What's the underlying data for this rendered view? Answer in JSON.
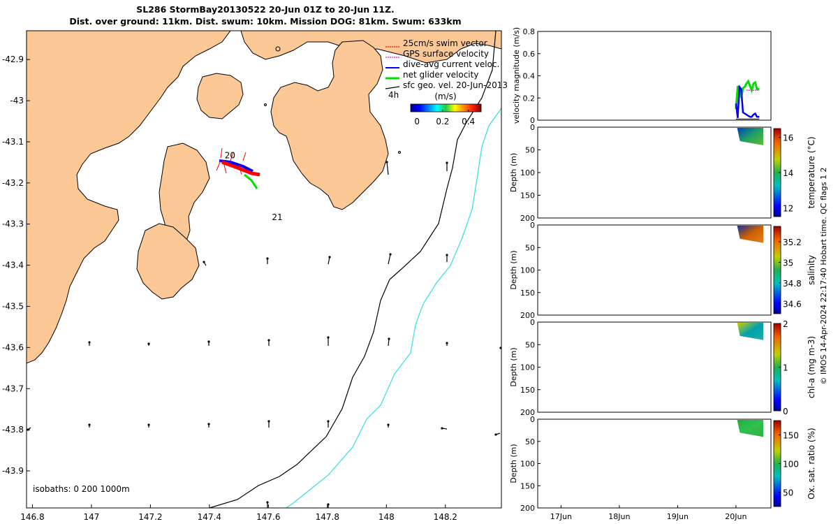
{
  "header": {
    "title_line1": "SL286 StormBay20130522 20-Jun 01Z to 20-Jun 11Z.",
    "title_line2": "Dist. over ground: 11km. Dist. swum: 10km. Mission DOG: 81km. Swum: 633km"
  },
  "chart_data": [
    {
      "type": "map",
      "xlim": [
        146.78,
        148.39
      ],
      "ylim": [
        -43.99,
        -42.83
      ],
      "x_ticks": [
        "146.8",
        "147",
        "147.2",
        "147.4",
        "147.6",
        "147.8",
        "148",
        "148.2"
      ],
      "y_ticks": [
        "-42.9",
        "-43",
        "-43.1",
        "-43.2",
        "-43.3",
        "-43.4",
        "-43.5",
        "-43.6",
        "-43.7",
        "-43.8",
        "-43.9"
      ],
      "legend": [
        {
          "label": "25cm/s swim vector",
          "color": "#ff0000"
        },
        {
          "label": "GPS surface velocity",
          "color": "#ff00ff"
        },
        {
          "label": "dive-avg current veloc.",
          "color": "#0000ff"
        },
        {
          "label": "net glider velocity",
          "color": "#00dd00"
        },
        {
          "label": "sfc geo. vel. 20-Jun-2013",
          "color": "#000000"
        }
      ],
      "legend_note": "4h",
      "colorbar": {
        "title": "(m/s)",
        "ticks": [
          "0",
          "0.2",
          "0.4"
        ],
        "range": [
          -0.05,
          0.5
        ]
      },
      "annotations": [
        {
          "text": "20",
          "lon": 147.47,
          "lat": -43.14
        },
        {
          "text": "21",
          "lon": 147.63,
          "lat": -43.29
        }
      ],
      "isobaths_label": "isobaths: 0   200  1000m"
    },
    {
      "type": "line",
      "ylabel": "velocity magnitude (m/s)",
      "ylim": [
        0,
        0.8
      ],
      "y_ticks": [
        "0",
        "0.2",
        "0.4",
        "0.6",
        "0.8"
      ],
      "series": [
        {
          "color": "#00dd00",
          "x": [
            20.0,
            20.03,
            20.06,
            20.09,
            20.12,
            20.15,
            20.18,
            20.21,
            20.24,
            20.27,
            20.3,
            20.33,
            20.36,
            20.4
          ],
          "y": [
            0.1,
            0.3,
            0.3,
            0.2,
            0.29,
            0.3,
            0.33,
            0.35,
            0.31,
            0.27,
            0.33,
            0.34,
            0.28,
            0.28
          ]
        },
        {
          "color": "#0000ff",
          "x": [
            20.0,
            20.03,
            20.06,
            20.09,
            20.12,
            20.15,
            20.18,
            20.21,
            20.24,
            20.27,
            20.3,
            20.33,
            20.36,
            20.4
          ],
          "y": [
            0.15,
            0.02,
            0.3,
            0.28,
            0.07,
            0.06,
            0.05,
            0.04,
            0.03,
            0.03,
            0.05,
            0.06,
            0.03,
            0.03
          ]
        },
        {
          "color": "#ff00ff",
          "x": [
            20.18,
            20.21,
            20.24,
            20.27,
            20.3,
            20.33,
            20.36,
            20.4
          ],
          "y": [
            0.27,
            0.27,
            0.27,
            0.27,
            0.27,
            0.27,
            0.27,
            0.27
          ]
        },
        {
          "color": "#000000",
          "x": [
            20.0,
            20.1,
            20.2,
            20.3,
            20.4
          ],
          "y": [
            0.01,
            0.01,
            0.01,
            0.01,
            0.01
          ]
        }
      ]
    },
    {
      "type": "heatmap",
      "variable": "temperature (°C)",
      "ylabel": "Depth (m)",
      "ylim": [
        200,
        0
      ],
      "y_ticks": [
        "0",
        "50",
        "100",
        "150",
        "200"
      ],
      "colorbar_ticks": [
        "12",
        "14",
        "16"
      ],
      "clim": [
        11.5,
        16.5
      ],
      "data_x_range": [
        "20Jun 00Z",
        "20Jun 11Z"
      ],
      "data_max_depth": 40
    },
    {
      "type": "heatmap",
      "variable": "salinity",
      "ylabel": "Depth (m)",
      "ylim": [
        200,
        0
      ],
      "y_ticks": [
        "0",
        "50",
        "100",
        "150",
        "200"
      ],
      "colorbar_ticks": [
        "34.6",
        "34.8",
        "35",
        "35.2"
      ],
      "clim": [
        34.5,
        35.35
      ],
      "data_x_range": [
        "20Jun 00Z",
        "20Jun 11Z"
      ],
      "data_max_depth": 40
    },
    {
      "type": "heatmap",
      "variable": "chl-a (mg m-3)",
      "ylabel": "Depth (m)",
      "ylim": [
        200,
        0
      ],
      "y_ticks": [
        "0",
        "50",
        "100",
        "150",
        "200"
      ],
      "colorbar_ticks": [
        "0",
        "1",
        "2"
      ],
      "clim": [
        0,
        2
      ],
      "data_x_range": [
        "20Jun 00Z",
        "20Jun 11Z"
      ],
      "data_max_depth": 40
    },
    {
      "type": "heatmap",
      "variable": "Ox. sat. ratio (%)",
      "ylabel": "Depth (m)",
      "ylim": [
        200,
        0
      ],
      "y_ticks": [
        "0",
        "50",
        "100",
        "150",
        "200"
      ],
      "colorbar_ticks": [
        "50",
        "100",
        "150"
      ],
      "clim": [
        25,
        175
      ],
      "data_x_range": [
        "20Jun 00Z",
        "20Jun 11Z"
      ],
      "data_max_depth": 40
    }
  ],
  "time_axis": {
    "ticks": [
      "17Jun",
      "18Jun",
      "19Jun",
      "20Jun"
    ],
    "xlim": [
      16.6,
      20.6
    ]
  },
  "watermark": "© IMOS 14-Apr-2024 22:17:40 Hobart time. QC flags 1  2"
}
